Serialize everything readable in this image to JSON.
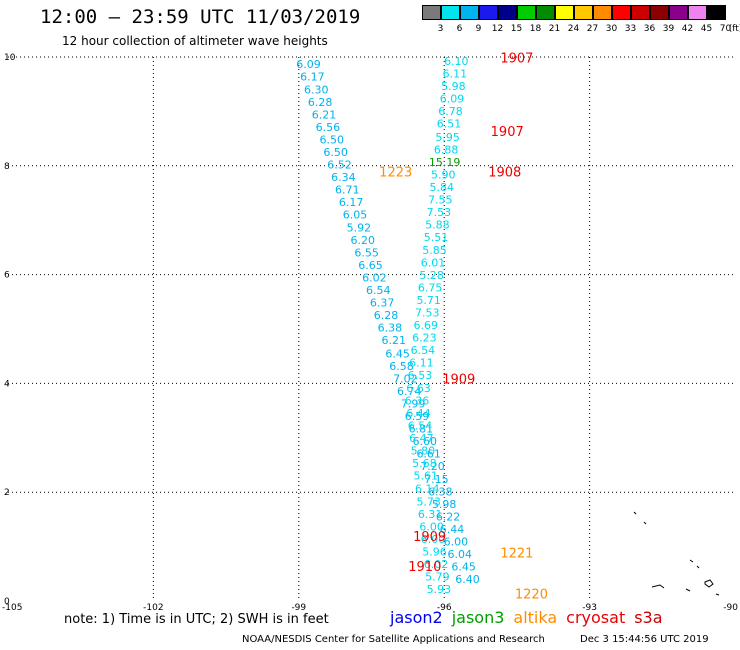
{
  "header": {
    "title": "12:00 – 23:59 UTC 11/03/2019",
    "subtitle": "12 hour collection of altimeter wave heights"
  },
  "color_scale": {
    "labels": [
      "3",
      "6",
      "9",
      "12",
      "15",
      "18",
      "21",
      "24",
      "27",
      "30",
      "33",
      "36",
      "39",
      "42",
      "45",
      "70",
      "(ft)"
    ],
    "colors": [
      "#7a7a7a",
      "#00e5ee",
      "#00b2ee",
      "#1a1aee",
      "#00008b",
      "#00cd00",
      "#008b00",
      "#ffff00",
      "#ffc800",
      "#ff8c00",
      "#ff0000",
      "#cd0000",
      "#8b0000",
      "#8b008b",
      "#ee82ee",
      "#000000"
    ]
  },
  "footer": {
    "note": "note:  1) Time is in UTC;  2) SWH is in feet",
    "satellites": [
      {
        "name": "jason2",
        "color": "#0000ee"
      },
      {
        "name": "jason3",
        "color": "#00a000"
      },
      {
        "name": "altika",
        "color": "#ff8c00"
      },
      {
        "name": "cryosat",
        "color": "#ee0000"
      },
      {
        "name": "s3a",
        "color": "#cc0000"
      }
    ],
    "credit": "NOAA/NESDIS Center for Satellite Applications and Research",
    "date": "Dec  3 15:44:56 UTC 2019"
  },
  "chart_data": {
    "type": "scatter",
    "title": "12:00 – 23:59 UTC 11/03/2019",
    "xlim": [
      -105,
      -90
    ],
    "ylim": [
      0,
      10
    ],
    "xticks": [
      -105,
      -102,
      -99,
      -96,
      -93,
      -90
    ],
    "xtick_labels": [
      "-105",
      "-102",
      "-99",
      "-96",
      "-93",
      "-90"
    ],
    "yticks": [
      0,
      2,
      4,
      6,
      8,
      10
    ],
    "ytick_labels": [
      "0",
      "2",
      "4",
      "6",
      "8",
      "10"
    ],
    "grid": true,
    "track_a": {
      "color": "#00b2ee",
      "points": [
        {
          "x": -98.8,
          "y": 9.8,
          "v": "6.09"
        },
        {
          "x": -98.72,
          "y": 9.57,
          "v": "6.17"
        },
        {
          "x": -98.64,
          "y": 9.33,
          "v": "6.30"
        },
        {
          "x": -98.56,
          "y": 9.1,
          "v": "6.28"
        },
        {
          "x": -98.48,
          "y": 8.87,
          "v": "6.21"
        },
        {
          "x": -98.4,
          "y": 8.64,
          "v": "6.56"
        },
        {
          "x": -98.32,
          "y": 8.41,
          "v": "6.50"
        },
        {
          "x": -98.24,
          "y": 8.18,
          "v": "6.50"
        },
        {
          "x": -98.16,
          "y": 7.95,
          "v": "6.52"
        },
        {
          "x": -98.08,
          "y": 7.72,
          "v": "6.34"
        },
        {
          "x": -98.0,
          "y": 7.49,
          "v": "6.71"
        },
        {
          "x": -97.92,
          "y": 7.26,
          "v": "6.17"
        },
        {
          "x": -97.84,
          "y": 7.03,
          "v": "6.05"
        },
        {
          "x": -97.76,
          "y": 6.79,
          "v": "5.92"
        },
        {
          "x": -97.68,
          "y": 6.56,
          "v": "6.20"
        },
        {
          "x": -97.6,
          "y": 6.33,
          "v": "6.55"
        },
        {
          "x": -97.52,
          "y": 6.1,
          "v": "6.65"
        },
        {
          "x": -97.44,
          "y": 5.87,
          "v": "6.02"
        },
        {
          "x": -97.36,
          "y": 5.64,
          "v": "6.54"
        },
        {
          "x": -97.28,
          "y": 5.41,
          "v": "6.37"
        },
        {
          "x": -97.2,
          "y": 5.18,
          "v": "6.28"
        },
        {
          "x": -97.12,
          "y": 4.95,
          "v": "6.38"
        },
        {
          "x": -97.04,
          "y": 4.72,
          "v": "6.21"
        },
        {
          "x": -96.96,
          "y": 4.48,
          "v": "6.45"
        },
        {
          "x": -96.88,
          "y": 4.25,
          "v": "6.58"
        },
        {
          "x": -96.8,
          "y": 4.02,
          "v": "7.02"
        },
        {
          "x": -96.72,
          "y": 3.79,
          "v": "6.74"
        },
        {
          "x": -96.64,
          "y": 3.56,
          "v": "7.99"
        },
        {
          "x": -96.56,
          "y": 3.33,
          "v": "6.59"
        },
        {
          "x": -96.48,
          "y": 3.1,
          "v": "6.81"
        },
        {
          "x": -96.4,
          "y": 2.87,
          "v": "6.60"
        },
        {
          "x": -96.32,
          "y": 2.64,
          "v": "6.61"
        },
        {
          "x": -96.24,
          "y": 2.41,
          "v": "7.20"
        },
        {
          "x": -96.16,
          "y": 2.17,
          "v": "7.15"
        },
        {
          "x": -96.08,
          "y": 1.94,
          "v": "6.38"
        },
        {
          "x": -96.0,
          "y": 1.71,
          "v": "5.98"
        },
        {
          "x": -95.92,
          "y": 1.48,
          "v": "6.22"
        },
        {
          "x": -95.84,
          "y": 1.25,
          "v": "6.44"
        },
        {
          "x": -95.76,
          "y": 1.02,
          "v": "6.00"
        },
        {
          "x": -95.68,
          "y": 0.79,
          "v": "6.04"
        },
        {
          "x": -95.6,
          "y": 0.56,
          "v": "6.45"
        },
        {
          "x": -95.52,
          "y": 0.33,
          "v": "6.40"
        }
      ]
    },
    "track_b": {
      "color": "#00d8ee",
      "points": [
        {
          "x": -95.75,
          "y": 9.85,
          "v": "6.10"
        },
        {
          "x": -95.78,
          "y": 9.62,
          "v": "6.11"
        },
        {
          "x": -95.81,
          "y": 9.39,
          "v": "5.98"
        },
        {
          "x": -95.84,
          "y": 9.16,
          "v": "6.09"
        },
        {
          "x": -95.87,
          "y": 8.93,
          "v": "6.78"
        },
        {
          "x": -95.9,
          "y": 8.7,
          "v": "6.51"
        },
        {
          "x": -95.93,
          "y": 8.46,
          "v": "5.95"
        },
        {
          "x": -95.96,
          "y": 8.23,
          "v": "6.88"
        },
        {
          "x": -95.99,
          "y": 8.0,
          "v": "15.19",
          "c": "#00a000"
        },
        {
          "x": -96.02,
          "y": 7.77,
          "v": "5.90"
        },
        {
          "x": -96.05,
          "y": 7.54,
          "v": "5.84"
        },
        {
          "x": -96.08,
          "y": 7.31,
          "v": "7.55"
        },
        {
          "x": -96.11,
          "y": 7.08,
          "v": "7.53"
        },
        {
          "x": -96.14,
          "y": 6.85,
          "v": "5.88"
        },
        {
          "x": -96.17,
          "y": 6.62,
          "v": "5.51"
        },
        {
          "x": -96.2,
          "y": 6.38,
          "v": "5.85"
        },
        {
          "x": -96.23,
          "y": 6.15,
          "v": "6.01"
        },
        {
          "x": -96.26,
          "y": 5.92,
          "v": "5.28"
        },
        {
          "x": -96.29,
          "y": 5.69,
          "v": "6.75"
        },
        {
          "x": -96.32,
          "y": 5.46,
          "v": "5.71"
        },
        {
          "x": -96.35,
          "y": 5.23,
          "v": "7.53"
        },
        {
          "x": -96.38,
          "y": 5.0,
          "v": "6.69"
        },
        {
          "x": -96.41,
          "y": 4.77,
          "v": "6.23"
        },
        {
          "x": -96.44,
          "y": 4.54,
          "v": "6.54"
        },
        {
          "x": -96.47,
          "y": 4.31,
          "v": "6.11"
        },
        {
          "x": -96.5,
          "y": 4.08,
          "v": "6.53"
        },
        {
          "x": -96.53,
          "y": 3.84,
          "v": "6.63"
        },
        {
          "x": -96.56,
          "y": 3.61,
          "v": "6.36"
        },
        {
          "x": -96.53,
          "y": 3.38,
          "v": "6.44"
        },
        {
          "x": -96.5,
          "y": 3.15,
          "v": "6.54"
        },
        {
          "x": -96.47,
          "y": 2.92,
          "v": "6.47"
        },
        {
          "x": -96.44,
          "y": 2.69,
          "v": "5.80"
        },
        {
          "x": -96.41,
          "y": 2.46,
          "v": "5.68"
        },
        {
          "x": -96.38,
          "y": 2.23,
          "v": "5.61"
        },
        {
          "x": -96.35,
          "y": 1.99,
          "v": "6.14"
        },
        {
          "x": -96.32,
          "y": 1.76,
          "v": "5.73"
        },
        {
          "x": -96.29,
          "y": 1.53,
          "v": "6.31"
        },
        {
          "x": -96.26,
          "y": 1.3,
          "v": "6.00"
        },
        {
          "x": -96.23,
          "y": 1.07,
          "v": "6.00"
        },
        {
          "x": -96.2,
          "y": 0.84,
          "v": "5.96"
        },
        {
          "x": -96.17,
          "y": 0.61,
          "v": "6.02"
        },
        {
          "x": -96.14,
          "y": 0.38,
          "v": "5.79"
        },
        {
          "x": -96.11,
          "y": 0.15,
          "v": "5.93"
        }
      ]
    },
    "time_labels": [
      {
        "x": -94.5,
        "y": 9.9,
        "v": "1907",
        "c": "#ee0000"
      },
      {
        "x": -94.7,
        "y": 8.55,
        "v": "1907",
        "c": "#ee0000"
      },
      {
        "x": -94.75,
        "y": 7.8,
        "v": "1908",
        "c": "#ee0000"
      },
      {
        "x": -97.0,
        "y": 7.8,
        "v": "1223",
        "c": "#ff8c00"
      },
      {
        "x": -95.7,
        "y": 4.0,
        "v": "1909",
        "c": "#ee0000"
      },
      {
        "x": -96.3,
        "y": 1.1,
        "v": "1909",
        "c": "#ee0000"
      },
      {
        "x": -94.5,
        "y": 0.8,
        "v": "1221",
        "c": "#ff8c00"
      },
      {
        "x": -96.4,
        "y": 0.55,
        "v": "1910",
        "c": "#ee0000"
      },
      {
        "x": -94.2,
        "y": 0.05,
        "v": "1220",
        "c": "#ff8c00"
      }
    ]
  }
}
